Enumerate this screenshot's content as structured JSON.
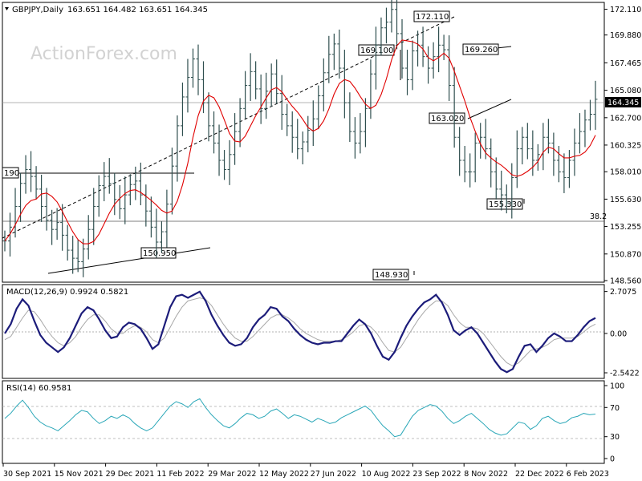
{
  "header": {
    "symbol": "GBPJPY,Daily",
    "ohlc": "163.651 164.482 163.651 164.345",
    "watermark": "ActionForex.com"
  },
  "chart_data": [
    {
      "type": "line",
      "panel": "price",
      "title": "GBPJPY,Daily",
      "y_ticks": [
        "172.110",
        "169.880",
        "167.465",
        "165.080",
        "162.700",
        "160.325",
        "158.010",
        "155.630",
        "153.255",
        "150.870",
        "148.560"
      ],
      "ylim": [
        148.56,
        172.5
      ],
      "last_price": "164.345",
      "x_labels": [
        "30 Sep 2021",
        "15 Nov 2021",
        "29 Dec 2021",
        "11 Feb 2022",
        "29 Mar 2022",
        "12 May 2022",
        "27 Jun 2022",
        "10 Aug 2022",
        "23 Sep 2022",
        "8 Nov 2022",
        "22 Dec 2022",
        "6 Feb 2023"
      ],
      "annotations": [
        "190",
        "150.950",
        "169.100",
        "172.110",
        "169.260",
        "163.020",
        "155.330",
        "148.930"
      ],
      "fib_label": "38.2",
      "series": [
        {
          "values": [
            152.0,
            153.2,
            155.0,
            157.0,
            158.2,
            157.6,
            156.5,
            155.0,
            153.8,
            153.0,
            153.6,
            152.5,
            151.2,
            150.5,
            150.2,
            151.3,
            153.0,
            155.0,
            156.8,
            157.6,
            157.0,
            155.6,
            154.8,
            156.0,
            156.9,
            157.2,
            156.0,
            154.6,
            153.2,
            151.9,
            152.8,
            155.2,
            158.5,
            162.0,
            164.5,
            166.2,
            167.8,
            166.0,
            164.0,
            162.0,
            160.5,
            159.0,
            158.2,
            159.5,
            161.5,
            163.5,
            165.5,
            166.7,
            165.2,
            163.5,
            165.0,
            166.5,
            164.8,
            163.0,
            162.0,
            161.0,
            160.0,
            160.6,
            161.6,
            162.6,
            164.6,
            166.6,
            168.2,
            169.1,
            167.0,
            164.0,
            161.5,
            160.5,
            161.5,
            163.5,
            166.5,
            169.0,
            170.5,
            171.0,
            172.1,
            170.0,
            167.0,
            166.0,
            168.5,
            169.0,
            168.0,
            167.0,
            168.0,
            169.0,
            168.6,
            165.5,
            161.0,
            159.0,
            158.0,
            158.0,
            160.5,
            161.0,
            160.0,
            158.0,
            156.5,
            156.0,
            155.3,
            157.5,
            160.0,
            161.0,
            160.0,
            159.0,
            159.5,
            161.0,
            160.5,
            159.0,
            158.0,
            157.5,
            159.0,
            160.5,
            161.5,
            162.5,
            163.0,
            164.3
          ]
        }
      ]
    },
    {
      "type": "line",
      "panel": "macd",
      "title": "MACD(12,26,9) 0.9924 0.5821",
      "y_ticks": [
        "2.7075",
        "0.00",
        "-2.5422"
      ],
      "ylim": [
        -2.8,
        3.0
      ],
      "series": [
        {
          "values": [
            0.0,
            0.6,
            1.6,
            2.2,
            1.8,
            0.8,
            -0.1,
            -0.6,
            -0.9,
            -1.2,
            -0.9,
            -0.3,
            0.5,
            1.3,
            1.7,
            1.5,
            0.9,
            0.2,
            -0.3,
            -0.2,
            0.4,
            0.7,
            0.6,
            0.3,
            -0.3,
            -1.0,
            -0.7,
            0.5,
            1.7,
            2.4,
            2.5,
            2.3,
            2.5,
            2.7,
            2.1,
            1.2,
            0.5,
            -0.1,
            -0.6,
            -0.8,
            -0.7,
            -0.3,
            0.4,
            0.9,
            1.2,
            1.7,
            1.6,
            1.1,
            0.8,
            0.3,
            -0.1,
            -0.4,
            -0.6,
            -0.7,
            -0.6,
            -0.6,
            -0.5,
            -0.5,
            0.0,
            0.5,
            0.9,
            0.6,
            0.0,
            -0.8,
            -1.5,
            -1.7,
            -1.2,
            -0.3,
            0.5,
            1.1,
            1.6,
            2.0,
            2.2,
            2.5,
            2.0,
            1.2,
            0.2,
            -0.1,
            0.2,
            0.4,
            0.0,
            -0.6,
            -1.2,
            -1.8,
            -2.3,
            -2.5,
            -2.3,
            -1.5,
            -0.8,
            -0.7,
            -1.2,
            -0.8,
            -0.3,
            0.0,
            -0.2,
            -0.5,
            -0.5,
            -0.1,
            0.4,
            0.8,
            1.0
          ]
        },
        {
          "values": [
            -0.4,
            -0.2,
            0.4,
            1.0,
            1.5,
            1.4,
            0.9,
            0.3,
            -0.2,
            -0.6,
            -0.8,
            -0.6,
            -0.2,
            0.4,
            0.9,
            1.2,
            1.2,
            0.8,
            0.3,
            0.0,
            0.0,
            0.3,
            0.5,
            0.4,
            0.1,
            -0.4,
            -0.6,
            -0.3,
            0.4,
            1.1,
            1.7,
            2.1,
            2.2,
            2.3,
            2.2,
            1.8,
            1.2,
            0.6,
            0.1,
            -0.3,
            -0.5,
            -0.5,
            -0.2,
            0.2,
            0.6,
            1.0,
            1.2,
            1.2,
            1.0,
            0.7,
            0.3,
            0.0,
            -0.2,
            -0.4,
            -0.5,
            -0.5,
            -0.5,
            -0.4,
            -0.2,
            0.1,
            0.5,
            0.6,
            0.4,
            0.0,
            -0.6,
            -1.1,
            -1.2,
            -0.9,
            -0.3,
            0.3,
            0.9,
            1.4,
            1.8,
            2.1,
            2.1,
            1.8,
            1.2,
            0.7,
            0.4,
            0.4,
            0.3,
            0.0,
            -0.5,
            -1.0,
            -1.5,
            -1.9,
            -2.1,
            -1.9,
            -1.5,
            -1.1,
            -1.0,
            -0.9,
            -0.7,
            -0.4,
            -0.3,
            -0.3,
            -0.3,
            -0.2,
            0.1,
            0.4,
            0.6
          ]
        }
      ]
    },
    {
      "type": "line",
      "panel": "rsi",
      "title": "RSI(14) 60.9581",
      "y_ticks": [
        "100",
        "70",
        "30",
        "0"
      ],
      "ylim": [
        0,
        100
      ],
      "series": [
        {
          "values": [
            55,
            62,
            72,
            80,
            70,
            58,
            50,
            45,
            42,
            38,
            45,
            52,
            60,
            66,
            64,
            55,
            48,
            52,
            58,
            55,
            60,
            56,
            48,
            42,
            38,
            42,
            52,
            62,
            72,
            78,
            75,
            70,
            78,
            82,
            70,
            60,
            52,
            45,
            42,
            48,
            56,
            62,
            60,
            55,
            58,
            65,
            68,
            62,
            55,
            60,
            58,
            54,
            50,
            55,
            52,
            48,
            50,
            56,
            60,
            64,
            68,
            72,
            66,
            55,
            45,
            38,
            30,
            32,
            45,
            58,
            66,
            70,
            74,
            72,
            65,
            55,
            48,
            52,
            58,
            62,
            55,
            48,
            40,
            35,
            32,
            34,
            42,
            50,
            48,
            40,
            45,
            55,
            58,
            52,
            48,
            50,
            56,
            58,
            62,
            60,
            61
          ]
        }
      ]
    }
  ]
}
